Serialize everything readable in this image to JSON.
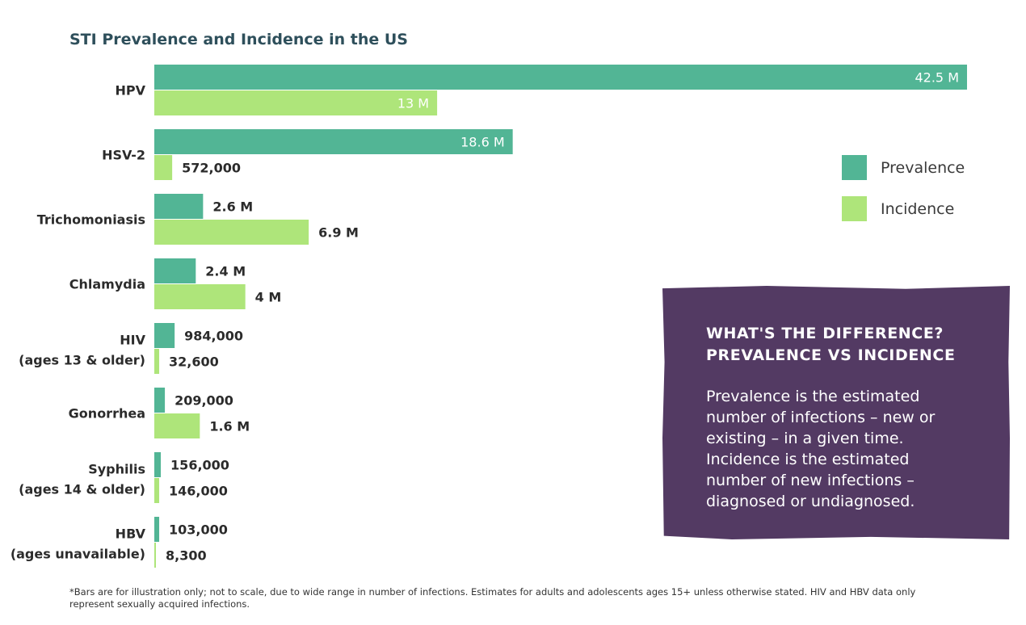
{
  "chart_data": {
    "type": "bar",
    "orientation": "horizontal",
    "title": "STI Prevalence and Incidence in the US",
    "categories": [
      [
        "HPV"
      ],
      [
        "HSV-2"
      ],
      [
        "Trichomoniasis"
      ],
      [
        "Chlamydia"
      ],
      [
        "HIV",
        "(ages 13 & older)"
      ],
      [
        "Gonorrhea"
      ],
      [
        "Syphilis",
        "(ages 14 & older)"
      ],
      [
        "HBV",
        "(ages unavailable)"
      ]
    ],
    "series": [
      {
        "name": "Prevalence",
        "color": "#52b595",
        "values": [
          42500000,
          18600000,
          2600000,
          2400000,
          984000,
          209000,
          156000,
          103000
        ],
        "labels": [
          "42.5 M",
          "18.6 M",
          "2.6 M",
          "2.4 M",
          "984,000",
          "209,000",
          "156,000",
          "103,000"
        ],
        "display_fraction": [
          1.0,
          0.441,
          0.06,
          0.051,
          0.025,
          0.013,
          0.008,
          0.006
        ]
      },
      {
        "name": "Incidence",
        "color": "#aee57a",
        "values": [
          13000000,
          572000,
          6900000,
          4000000,
          32600,
          1600000,
          146000,
          8300
        ],
        "labels": [
          "13 M",
          "572,000",
          "6.9 M",
          "4 M",
          "32,600",
          "1.6 M",
          "146,000",
          "8,300"
        ],
        "display_fraction": [
          0.348,
          0.022,
          0.19,
          0.112,
          0.006,
          0.056,
          0.006,
          0.002
        ]
      }
    ],
    "legend": [
      "Prevalence",
      "Incidence"
    ],
    "legend_position": "right",
    "grid": false
  },
  "callout": {
    "title_lines": [
      "WHAT'S THE DIFFERENCE?",
      "PREVALENCE VS INCIDENCE"
    ],
    "body_lines": [
      "Prevalence is the estimated",
      "number of infections – new or",
      "existing – in a given time.",
      "Incidence is the estimated",
      "number of new infections –",
      "diagnosed or undiagnosed."
    ],
    "background": "#533a63"
  },
  "footnote": {
    "lines": [
      "*Bars are for illustration only; not to scale, due to wide range in number of infections. Estimates for adults and adolescents ages 15+ unless otherwise stated. HIV and HBV data only",
      "represent sexually acquired infections."
    ]
  }
}
